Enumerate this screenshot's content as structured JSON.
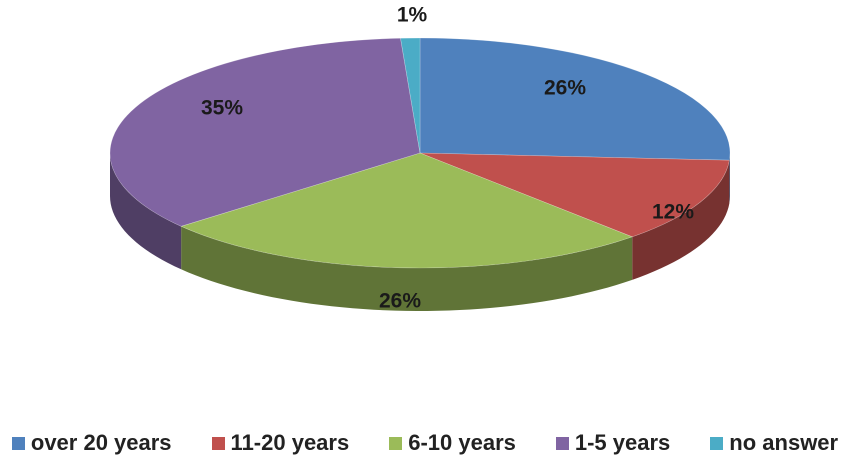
{
  "chart_data": {
    "type": "pie",
    "categories": [
      "over 20 years",
      "11-20 years",
      "6-10 years",
      "1-5 years",
      "no answer"
    ],
    "values": [
      26,
      12,
      26,
      35,
      1
    ],
    "labels": [
      "26%",
      "12%",
      "26%",
      "35%",
      "1%"
    ],
    "colors": [
      "#4F81BD",
      "#C0504D",
      "#9BBB59",
      "#8064A2",
      "#4BACC6"
    ],
    "legend_position": "bottom",
    "style": "3d"
  }
}
